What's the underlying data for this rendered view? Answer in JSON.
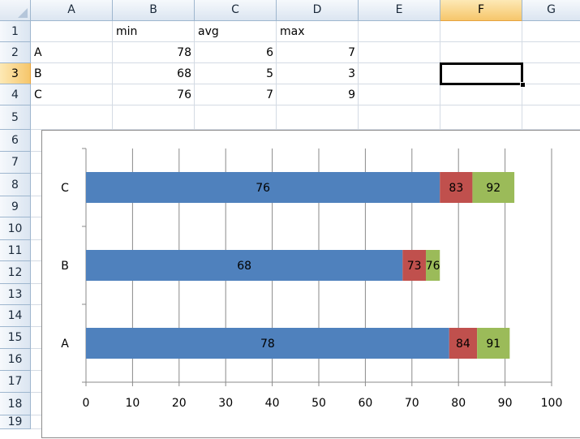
{
  "sheet": {
    "columns": [
      "A",
      "B",
      "C",
      "D",
      "E",
      "F",
      "G"
    ],
    "rows": [
      "1",
      "2",
      "3",
      "4",
      "5",
      "6",
      "7",
      "8",
      "9",
      "10",
      "11",
      "12",
      "13",
      "14",
      "15",
      "16",
      "17",
      "18",
      "19"
    ],
    "selected_column": "F",
    "selected_row": "3",
    "active_cell": "F3",
    "headers": [
      "",
      "min",
      "avg",
      "max"
    ],
    "data": [
      {
        "label": "A",
        "min": "78",
        "avg": "6",
        "max": "7"
      },
      {
        "label": "B",
        "min": "68",
        "avg": "5",
        "max": "3"
      },
      {
        "label": "C",
        "min": "76",
        "avg": "7",
        "max": "9"
      }
    ]
  },
  "chart_data": {
    "type": "bar",
    "orientation": "horizontal",
    "stacked": true,
    "categories": [
      "A",
      "B",
      "C"
    ],
    "series": [
      {
        "values": [
          78,
          68,
          76
        ],
        "labels": [
          "78",
          "68",
          "76"
        ],
        "color": "#4f81bd"
      },
      {
        "values": [
          6,
          5,
          7
        ],
        "labels": [
          "84",
          "73",
          "83"
        ],
        "color": "#c0504d"
      },
      {
        "values": [
          7,
          3,
          9
        ],
        "labels": [
          "91",
          "76",
          "92"
        ],
        "color": "#9bbb59"
      }
    ],
    "xlim": [
      0,
      100
    ],
    "xticks": [
      "0",
      "10",
      "20",
      "30",
      "40",
      "50",
      "60",
      "70",
      "80",
      "90",
      "100"
    ],
    "grid": "vertical",
    "legend": "none"
  }
}
